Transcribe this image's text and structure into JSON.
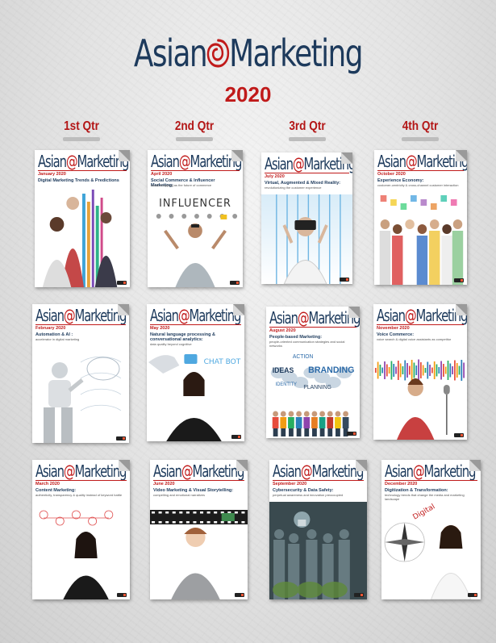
{
  "brand": {
    "part1": "Asian",
    "part2": "Marketing",
    "accent_color": "#c01a1a",
    "navy_color": "#1d3a5c"
  },
  "year": "2020",
  "quarters": [
    "1st Qtr",
    "2nd Qtr",
    "3rd Qtr",
    "4th Qtr"
  ],
  "covers": [
    {
      "month": "January 2020",
      "headline": "Digital Marketing Trends & Predictions",
      "sub": "",
      "art": "people-data"
    },
    {
      "month": "April 2020",
      "headline": "Social Commerce & Influencer Marketing:",
      "sub": "social shopping as the future of commerce",
      "art": "influencer",
      "art_text": "INFLUENCER"
    },
    {
      "month": "July 2020",
      "headline": "Virtual, Augmented & Mixed Reality:",
      "sub": "revolutionizing the customer experience",
      "art": "vr"
    },
    {
      "month": "October 2020",
      "headline": "Experience Economy:",
      "sub": "customer-centricity & cross-channel customer interaction",
      "art": "crowd"
    },
    {
      "month": "February 2020",
      "headline": "Automation & AI :",
      "sub": "accelerator in digital marketing",
      "art": "robot"
    },
    {
      "month": "May 2020",
      "headline": "Natural language processing & conversational analytics:",
      "sub": "data quality beyond cognitive",
      "art": "chatbot",
      "art_text": "CHAT BOT"
    },
    {
      "month": "August 2020",
      "headline": "People-based Marketing:",
      "sub": "people-oriented communication strategies and social networks",
      "art": "branding",
      "art_words": [
        "ACTION",
        "IDEAS",
        "BRANDING",
        "IDENTITY",
        "PLANNING"
      ]
    },
    {
      "month": "November 2020",
      "headline": "Voice Commerce:",
      "sub": "voice search & digital voice assistants as competitor",
      "art": "voice"
    },
    {
      "month": "March 2020",
      "headline": "Content Marketing:",
      "sub": "authenticity, transparency & quality instead of keyword battle",
      "art": "content"
    },
    {
      "month": "June 2020",
      "headline": "Video Marketing & Visual Storytelling:",
      "sub": "compelling and emotional narratives",
      "art": "video"
    },
    {
      "month": "September 2020",
      "headline": "Cybersecurity & Data Safety:",
      "sub": "perpetual awareness and innovation preoccupied",
      "art": "cyber"
    },
    {
      "month": "December 2020",
      "headline": "Digitization & Transformation:",
      "sub": "technology trends that change the media and marketing landscape",
      "art": "digital",
      "art_text": "Digital"
    }
  ]
}
